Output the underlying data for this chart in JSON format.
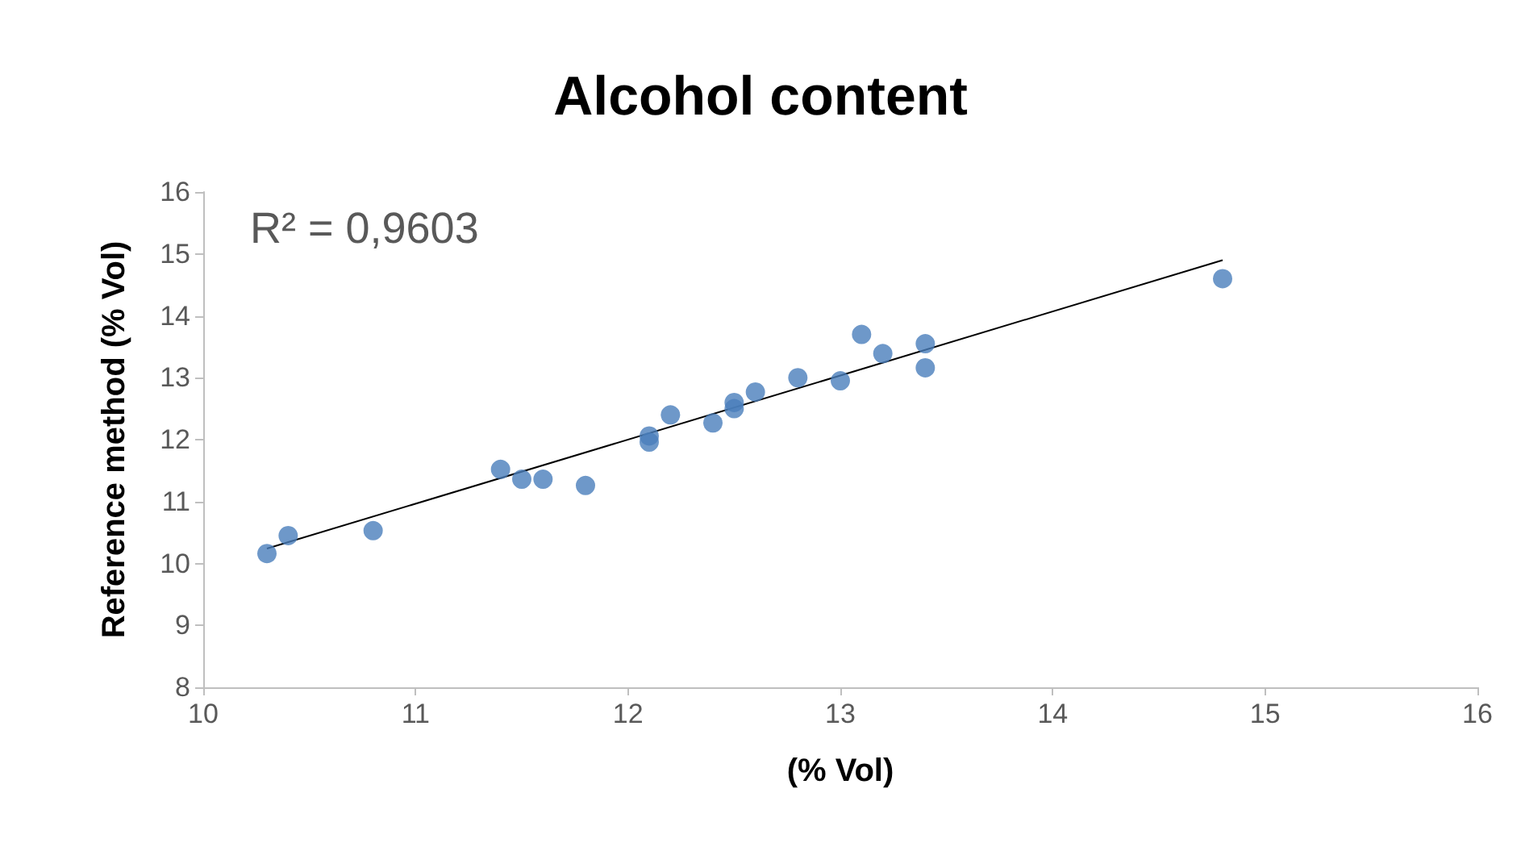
{
  "chart_data": {
    "type": "scatter",
    "title": "Alcohol content",
    "xlabel": "(% Vol)",
    "ylabel": "Reference method (% Vol)",
    "annotations": [
      "R² = 0,9603"
    ],
    "series": [
      {
        "color": "#4a7ebb",
        "marker": "circle",
        "x": [
          10.3,
          10.4,
          10.8,
          11.4,
          11.5,
          11.6,
          11.8,
          12.1,
          12.1,
          12.2,
          12.4,
          12.5,
          12.5,
          12.6,
          12.8,
          13.0,
          13.1,
          13.2,
          13.4,
          13.4,
          14.8
        ],
        "values": [
          10.16,
          10.45,
          10.53,
          11.52,
          11.36,
          11.36,
          11.26,
          12.06,
          11.96,
          12.4,
          12.27,
          12.6,
          12.5,
          12.77,
          13.0,
          12.95,
          13.7,
          13.39,
          13.55,
          13.16,
          14.6
        ]
      },
      {
        "type": "line",
        "color": "#000000",
        "marker": "none",
        "line_style": "solid",
        "x": [
          10.3,
          14.8
        ],
        "values": [
          10.24,
          14.9
        ]
      }
    ],
    "xlim": [
      10,
      16
    ],
    "xticks": [
      10,
      11,
      12,
      13,
      14,
      15,
      16
    ],
    "ylim": [
      8,
      16
    ],
    "yticks": [
      8,
      9,
      10,
      11,
      12,
      13,
      14,
      15,
      16
    ],
    "grid": false
  }
}
